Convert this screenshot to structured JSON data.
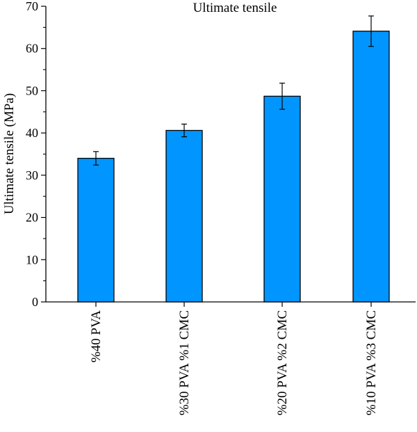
{
  "chart_data": {
    "type": "bar",
    "title": "Ultimate tensile",
    "xlabel": "",
    "ylabel": "Ultimate tensile (MPa)",
    "categories": [
      "%40 PVA",
      "%30 PVA %1 CMC",
      "%20 PVA %2 CMC",
      "%10 PVA %3 CMC"
    ],
    "values": [
      34.0,
      40.6,
      48.7,
      64.1
    ],
    "error_low": [
      1.6,
      1.5,
      3.1,
      3.6
    ],
    "error_high": [
      1.6,
      1.5,
      3.1,
      3.6
    ],
    "ylim": [
      0,
      70
    ],
    "yticks": [
      0,
      10,
      20,
      30,
      40,
      50,
      60,
      70
    ],
    "grid": false,
    "bar_color": "#0095ff",
    "bar_edge_color": "#000000"
  }
}
